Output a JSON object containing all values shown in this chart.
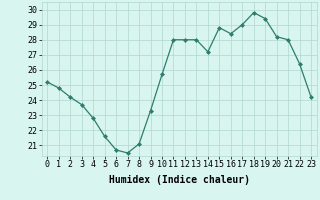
{
  "x": [
    0,
    1,
    2,
    3,
    4,
    5,
    6,
    7,
    8,
    9,
    10,
    11,
    12,
    13,
    14,
    15,
    16,
    17,
    18,
    19,
    20,
    21,
    22,
    23
  ],
  "y": [
    25.2,
    24.8,
    24.2,
    23.7,
    22.8,
    21.6,
    20.7,
    20.5,
    21.1,
    23.3,
    25.7,
    28.0,
    28.0,
    28.0,
    27.2,
    28.8,
    28.4,
    29.0,
    29.8,
    29.4,
    28.2,
    28.0,
    26.4,
    24.2
  ],
  "line_color": "#2e7d6e",
  "marker": "D",
  "markersize": 2.0,
  "linewidth": 0.9,
  "bg_color": "#d8f5f0",
  "grid_color": "#b0d8d0",
  "xlabel": "Humidex (Indice chaleur)",
  "xlabel_fontsize": 7,
  "tick_fontsize": 6,
  "xlim": [
    -0.5,
    23.5
  ],
  "ylim": [
    20.3,
    30.5
  ],
  "yticks": [
    21,
    22,
    23,
    24,
    25,
    26,
    27,
    28,
    29,
    30
  ],
  "xticks": [
    0,
    1,
    2,
    3,
    4,
    5,
    6,
    7,
    8,
    9,
    10,
    11,
    12,
    13,
    14,
    15,
    16,
    17,
    18,
    19,
    20,
    21,
    22,
    23
  ]
}
